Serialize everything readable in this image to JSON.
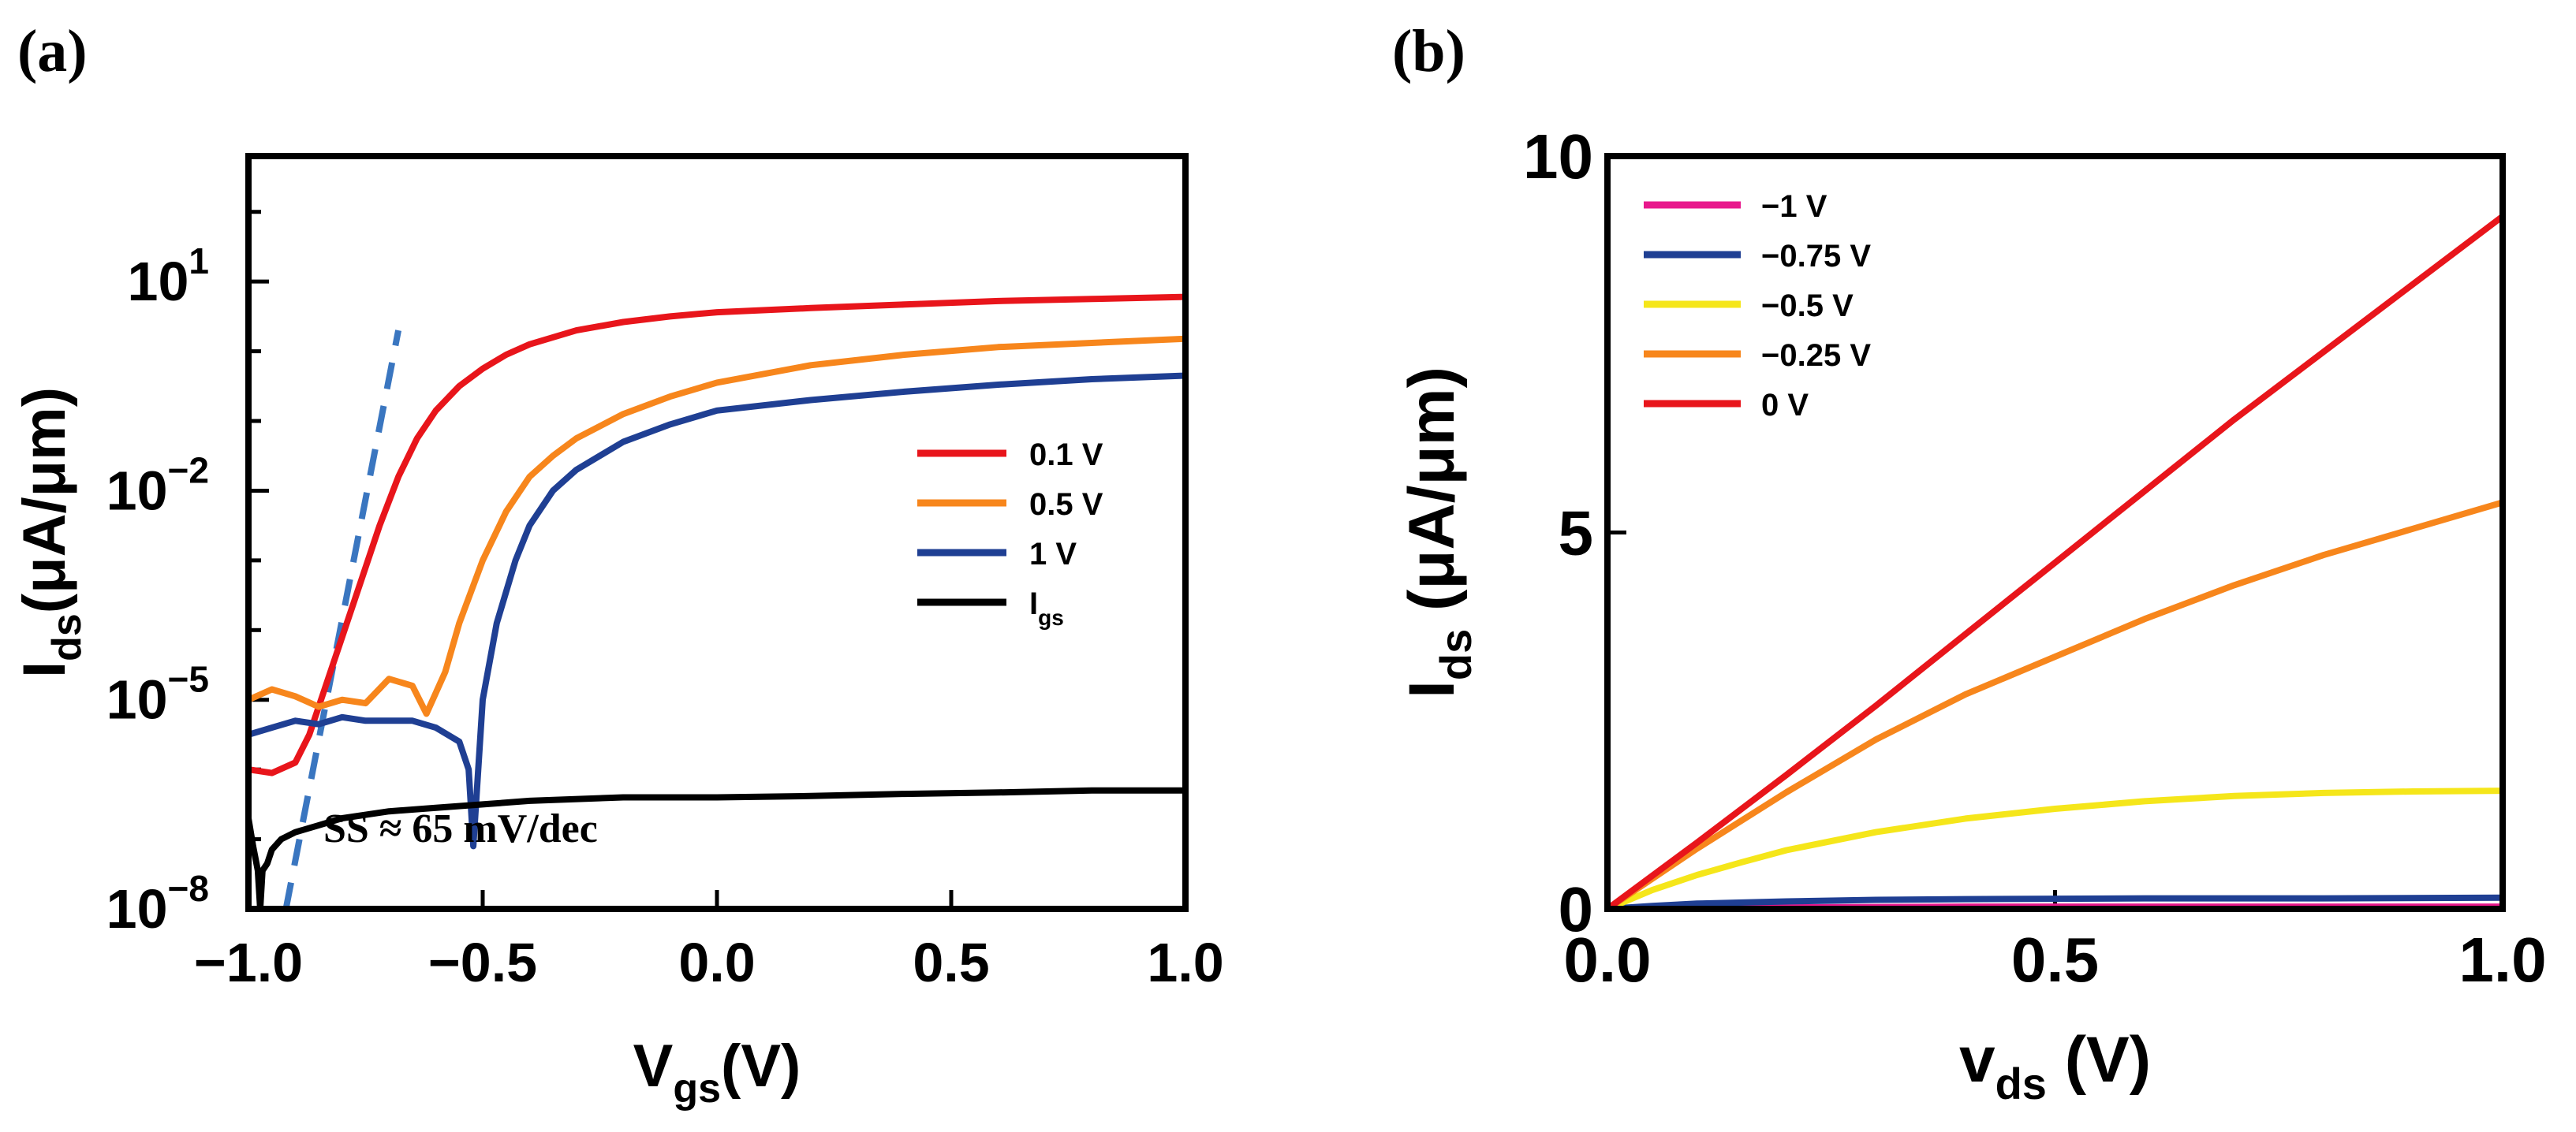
{
  "chart_data": [
    {
      "type": "line",
      "panel_label": "(a)",
      "xscale": "linear",
      "yscale": "log",
      "xlim": [
        -1.0,
        1.0
      ],
      "ylim_log10": [
        -8,
        2.8
      ],
      "xticks": [
        {
          "v": -1.0,
          "label": "−1.0"
        },
        {
          "v": -0.5,
          "label": "−0.5"
        },
        {
          "v": 0.0,
          "label": "0.0"
        },
        {
          "v": 0.5,
          "label": "0.5"
        },
        {
          "v": 1.0,
          "label": "1.0"
        }
      ],
      "xlabel": {
        "main": "V",
        "sub": "gs",
        "rest": "(V)"
      },
      "ylabel": {
        "main": "I",
        "sub": "ds",
        "rest": "(μA/μm)"
      },
      "yticks": [
        {
          "exp": 1,
          "base": "10",
          "sup": "1"
        },
        {
          "exp": -2,
          "base": "10",
          "sup": "−2"
        },
        {
          "exp": -5,
          "base": "10",
          "sup": "−5"
        },
        {
          "exp": -8,
          "base": "10",
          "sup": "−8"
        }
      ],
      "annotation": "SS ≈ 65 mV/dec",
      "ss_line": {
        "x": [
          -0.92,
          -0.68
        ],
        "log10": [
          -8.0,
          0.3
        ],
        "color": "#3a76c0"
      },
      "legend": [
        {
          "label": "0.1 V",
          "color": "#e8151b"
        },
        {
          "label": "0.5 V",
          "color": "#f7861c"
        },
        {
          "label": "1 V",
          "color": "#1f3f93"
        },
        {
          "label": "I",
          "sub": "gs",
          "color": "#000000"
        }
      ],
      "series": [
        {
          "name": "0.1 V",
          "color": "#e8151b",
          "x": [
            -1.0,
            -0.95,
            -0.9,
            -0.87,
            -0.84,
            -0.8,
            -0.76,
            -0.72,
            -0.68,
            -0.64,
            -0.6,
            -0.55,
            -0.5,
            -0.45,
            -0.4,
            -0.3,
            -0.2,
            -0.1,
            0.0,
            0.2,
            0.4,
            0.6,
            0.8,
            1.0
          ],
          "log10": [
            -6.0,
            -6.05,
            -5.9,
            -5.5,
            -4.9,
            -4.1,
            -3.3,
            -2.5,
            -1.8,
            -1.25,
            -0.85,
            -0.5,
            -0.25,
            -0.05,
            0.1,
            0.3,
            0.42,
            0.5,
            0.56,
            0.62,
            0.67,
            0.72,
            0.75,
            0.78
          ]
        },
        {
          "name": "0.5 V",
          "color": "#f7861c",
          "x": [
            -1.0,
            -0.95,
            -0.9,
            -0.85,
            -0.8,
            -0.75,
            -0.7,
            -0.65,
            -0.62,
            -0.58,
            -0.55,
            -0.5,
            -0.45,
            -0.4,
            -0.35,
            -0.3,
            -0.2,
            -0.1,
            0.0,
            0.2,
            0.4,
            0.6,
            0.8,
            1.0
          ],
          "log10": [
            -5.0,
            -4.85,
            -4.95,
            -5.1,
            -5.0,
            -5.05,
            -4.7,
            -4.8,
            -5.2,
            -4.6,
            -3.9,
            -3.0,
            -2.3,
            -1.8,
            -1.5,
            -1.25,
            -0.9,
            -0.65,
            -0.45,
            -0.2,
            -0.05,
            0.06,
            0.12,
            0.18
          ]
        },
        {
          "name": "1 V",
          "color": "#1f3f93",
          "x": [
            -1.0,
            -0.95,
            -0.9,
            -0.85,
            -0.8,
            -0.75,
            -0.7,
            -0.65,
            -0.6,
            -0.55,
            -0.53,
            -0.52,
            -0.5,
            -0.47,
            -0.43,
            -0.4,
            -0.35,
            -0.3,
            -0.2,
            -0.1,
            0.0,
            0.2,
            0.4,
            0.6,
            0.8,
            1.0
          ],
          "log10": [
            -5.5,
            -5.4,
            -5.3,
            -5.35,
            -5.25,
            -5.3,
            -5.3,
            -5.3,
            -5.4,
            -5.6,
            -6.0,
            -7.1,
            -5.0,
            -3.9,
            -3.0,
            -2.5,
            -2.0,
            -1.7,
            -1.3,
            -1.05,
            -0.85,
            -0.7,
            -0.58,
            -0.48,
            -0.4,
            -0.35
          ]
        },
        {
          "name": "Igs",
          "color": "#000000",
          "x": [
            -1.0,
            -0.99,
            -0.98,
            -0.975,
            -0.97,
            -0.96,
            -0.95,
            -0.93,
            -0.9,
            -0.85,
            -0.8,
            -0.7,
            -0.6,
            -0.5,
            -0.4,
            -0.2,
            0.0,
            0.2,
            0.4,
            0.6,
            0.8,
            1.0
          ],
          "log10": [
            -6.7,
            -7.1,
            -7.45,
            -8.0,
            -7.45,
            -7.35,
            -7.15,
            -7.0,
            -6.9,
            -6.8,
            -6.7,
            -6.6,
            -6.55,
            -6.5,
            -6.45,
            -6.4,
            -6.4,
            -6.38,
            -6.35,
            -6.33,
            -6.3,
            -6.3
          ]
        }
      ]
    },
    {
      "type": "line",
      "panel_label": "(b)",
      "xscale": "linear",
      "yscale": "linear",
      "xlim": [
        0.0,
        1.0
      ],
      "ylim": [
        0,
        10
      ],
      "xticks": [
        {
          "v": 0.0,
          "label": "0.0"
        },
        {
          "v": 0.5,
          "label": "0.5"
        },
        {
          "v": 1.0,
          "label": "1.0"
        }
      ],
      "yticks": [
        {
          "v": 0,
          "label": "0"
        },
        {
          "v": 5,
          "label": "5"
        },
        {
          "v": 10,
          "label": "10"
        }
      ],
      "xlabel": {
        "main": "v",
        "sub": "ds",
        "rest": " (V)"
      },
      "ylabel": {
        "main": "I",
        "sub": "ds",
        "rest": " (μA/μm)"
      },
      "legend": [
        {
          "label": "−1 V",
          "color": "#e8188c"
        },
        {
          "label": "−0.75 V",
          "color": "#1f3f93"
        },
        {
          "label": "−0.5 V",
          "color": "#f5e61a"
        },
        {
          "label": "−0.25 V",
          "color": "#f7861c"
        },
        {
          "label": "0 V",
          "color": "#e8151b"
        }
      ],
      "series": [
        {
          "name": "−1 V",
          "color": "#e8188c",
          "x": [
            0.0,
            0.1,
            0.2,
            0.4,
            0.6,
            0.8,
            1.0
          ],
          "y": [
            0.0,
            0.01,
            0.02,
            0.03,
            0.03,
            0.03,
            0.03
          ]
        },
        {
          "name": "−0.75 V",
          "color": "#1f3f93",
          "x": [
            0.0,
            0.05,
            0.1,
            0.2,
            0.3,
            0.4,
            0.6,
            0.8,
            1.0
          ],
          "y": [
            0.0,
            0.04,
            0.07,
            0.1,
            0.12,
            0.13,
            0.14,
            0.14,
            0.15
          ]
        },
        {
          "name": "−0.5 V",
          "color": "#f5e61a",
          "x": [
            0.0,
            0.05,
            0.1,
            0.15,
            0.2,
            0.3,
            0.4,
            0.5,
            0.6,
            0.7,
            0.8,
            0.9,
            1.0
          ],
          "y": [
            0.0,
            0.25,
            0.45,
            0.62,
            0.78,
            1.02,
            1.2,
            1.33,
            1.43,
            1.5,
            1.54,
            1.56,
            1.57
          ]
        },
        {
          "name": "−0.25 V",
          "color": "#f7861c",
          "x": [
            0.0,
            0.1,
            0.2,
            0.3,
            0.4,
            0.5,
            0.6,
            0.7,
            0.8,
            0.9,
            1.0
          ],
          "y": [
            0.0,
            0.8,
            1.55,
            2.25,
            2.85,
            3.35,
            3.85,
            4.3,
            4.7,
            5.05,
            5.4
          ]
        },
        {
          "name": "0 V",
          "color": "#e8151b",
          "x": [
            0.0,
            0.1,
            0.2,
            0.3,
            0.4,
            0.5,
            0.6,
            0.7,
            0.8,
            0.9,
            1.0
          ],
          "y": [
            0.0,
            0.88,
            1.78,
            2.7,
            3.65,
            4.6,
            5.55,
            6.5,
            7.4,
            8.3,
            9.2
          ]
        }
      ]
    }
  ]
}
